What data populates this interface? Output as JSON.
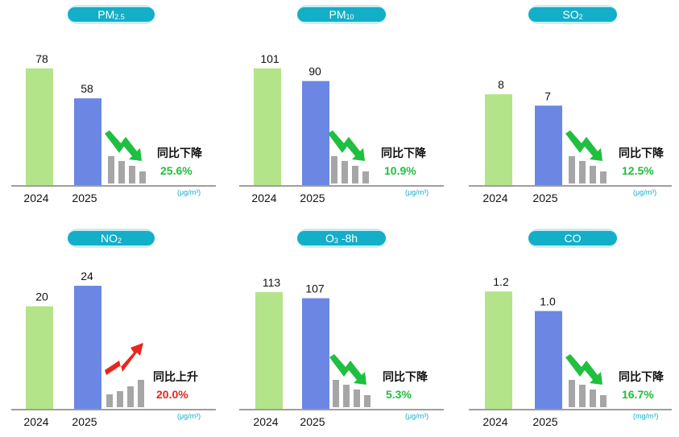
{
  "chart_data": [
    {
      "type": "bar",
      "title": "PM₂.₅",
      "categories": [
        "2024",
        "2025"
      ],
      "values": [
        78,
        58
      ],
      "value_labels": [
        "78",
        "58"
      ],
      "ylim": [
        0,
        85
      ],
      "trend_text": "同比下降",
      "change": "25.6%",
      "direction": "down",
      "unit": "(μg/m³)"
    },
    {
      "type": "bar",
      "title": "PM₁₀",
      "categories": [
        "2024",
        "2025"
      ],
      "values": [
        101,
        90
      ],
      "value_labels": [
        "101",
        "90"
      ],
      "ylim": [
        0,
        110
      ],
      "trend_text": "同比下降",
      "change": "10.9%",
      "direction": "down",
      "unit": "(μg/m³)"
    },
    {
      "type": "bar",
      "title": "SO₂",
      "categories": [
        "2024",
        "2025"
      ],
      "values": [
        8,
        7
      ],
      "value_labels": [
        "8",
        "7"
      ],
      "ylim": [
        0,
        11.2
      ],
      "trend_text": "同比下降",
      "change": "12.5%",
      "direction": "down",
      "unit": "(μg/m³)"
    },
    {
      "type": "bar",
      "title": "NO₂",
      "categories": [
        "2024",
        "2025"
      ],
      "values": [
        20,
        24
      ],
      "value_labels": [
        "20",
        "24"
      ],
      "ylim": [
        0,
        24.8
      ],
      "trend_text": "同比上升",
      "change": "20.0%",
      "direction": "up",
      "unit": "(μg/m³)"
    },
    {
      "type": "bar",
      "title": "O₃-8h",
      "categories": [
        "2024",
        "2025"
      ],
      "values": [
        113,
        107
      ],
      "value_labels": [
        "113",
        "107"
      ],
      "ylim": [
        0,
        123
      ],
      "trend_text": "同比下降",
      "change": "5.3%",
      "direction": "down",
      "unit": "(μg/m³)"
    },
    {
      "type": "bar",
      "title": "CO",
      "categories": [
        "2024",
        "2025"
      ],
      "values": [
        1.2,
        1.0
      ],
      "value_labels": [
        "1.2",
        "1.0"
      ],
      "ylim": [
        0,
        1.3
      ],
      "trend_text": "同比下降",
      "change": "16.7%",
      "direction": "down",
      "unit": "(mg/m³)"
    }
  ],
  "colors": {
    "bar_2024": "#b3e48a",
    "bar_2025": "#6b87e3",
    "down": "#1fbf3f",
    "up": "#e8261d",
    "badge": "#13aec8",
    "badge_glow": "#c9eef4",
    "mini_bars": "#a6a6a6",
    "axis": "#7f7f7f"
  }
}
